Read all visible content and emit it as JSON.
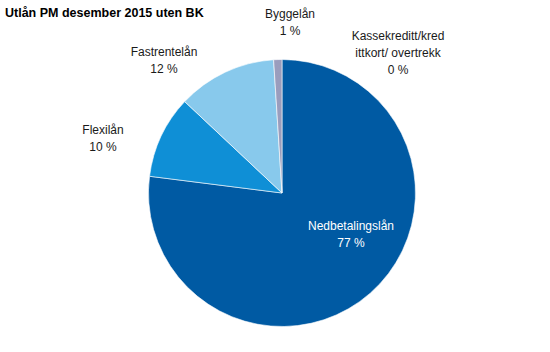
{
  "chart_data": {
    "type": "pie",
    "title": "Utlån PM desember 2015 uten BK",
    "categories": [
      "Nedbetalingslån",
      "Flexilån",
      "Fastrentelån",
      "Byggelån",
      "Kassekreditt/kred\nittkort/ overtrekk"
    ],
    "values": [
      77,
      10,
      12,
      1,
      0
    ],
    "value_labels": [
      "77 %",
      "10 %",
      "12 %",
      "1 %",
      "0 %"
    ],
    "colors": [
      "#005aa3",
      "#0f8fd6",
      "#88c9ec",
      "#9a9dbd",
      "#c7c9d9"
    ],
    "data_labels": true
  }
}
